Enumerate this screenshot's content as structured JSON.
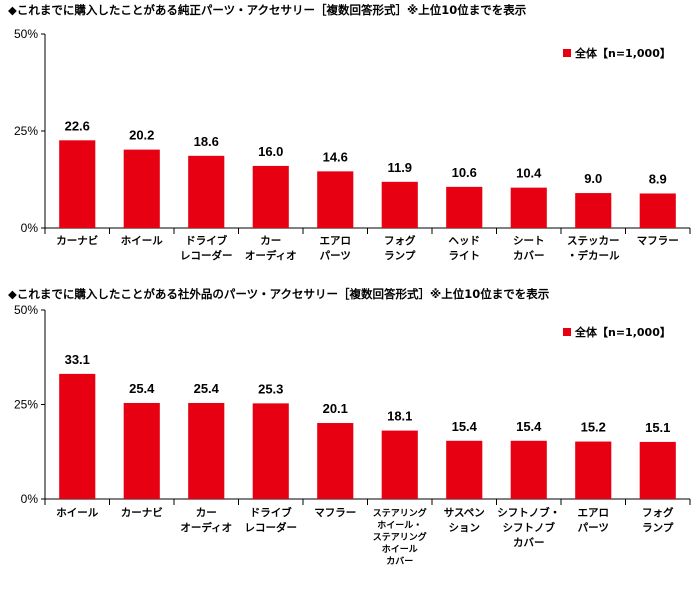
{
  "colors": {
    "bar": "#e60012",
    "axis": "#000000"
  },
  "chart_data": [
    {
      "type": "bar",
      "title": "◆これまでに購入したことがある純正パーツ・アクセサリー［複数回答形式］※上位10位までを表示",
      "ylim": [
        0,
        50
      ],
      "yticks": [
        "0%",
        "25%",
        "50%"
      ],
      "legend": "top-right",
      "categories": [
        [
          "カーナビ"
        ],
        [
          "ホイール"
        ],
        [
          "ドライブ",
          "レコーダー"
        ],
        [
          "カー",
          "オーディオ"
        ],
        [
          "エアロ",
          "パーツ"
        ],
        [
          "フォグ",
          "ランプ"
        ],
        [
          "ヘッド",
          "ライト"
        ],
        [
          "シート",
          "カバー"
        ],
        [
          "ステッカー",
          "・デカール"
        ],
        [
          "マフラー"
        ]
      ],
      "series": [
        {
          "name": "全体【n=1,000】",
          "values": [
            22.6,
            20.2,
            18.6,
            16.0,
            14.6,
            11.9,
            10.6,
            10.4,
            9.0,
            8.9
          ],
          "labels": [
            "22.6",
            "20.2",
            "18.6",
            "16.0",
            "14.6",
            "11.9",
            "10.6",
            "10.4",
            "9.0",
            "8.9"
          ]
        }
      ]
    },
    {
      "type": "bar",
      "title": "◆これまでに購入したことがある社外品のパーツ・アクセサリー［複数回答形式］※上位10位までを表示",
      "ylim": [
        0,
        50
      ],
      "yticks": [
        "0%",
        "25%",
        "50%"
      ],
      "legend": "top-right",
      "categories": [
        [
          "ホイール"
        ],
        [
          "カーナビ"
        ],
        [
          "カー",
          "オーディオ"
        ],
        [
          "ドライブ",
          "レコーダー"
        ],
        [
          "マフラー"
        ],
        [
          "ステアリング",
          "ホイール・",
          "ステアリング",
          "ホイール",
          "カバー"
        ],
        [
          "サスペン",
          "ション"
        ],
        [
          "シフトノブ・",
          "シフトノブ",
          "カバー"
        ],
        [
          "エアロ",
          "パーツ"
        ],
        [
          "フォグ",
          "ランプ"
        ]
      ],
      "series": [
        {
          "name": "全体【n=1,000】",
          "values": [
            33.1,
            25.4,
            25.4,
            25.3,
            20.1,
            18.1,
            15.4,
            15.4,
            15.2,
            15.1
          ],
          "labels": [
            "33.1",
            "25.4",
            "25.4",
            "25.3",
            "20.1",
            "18.1",
            "15.4",
            "15.4",
            "15.2",
            "15.1"
          ]
        }
      ]
    }
  ]
}
